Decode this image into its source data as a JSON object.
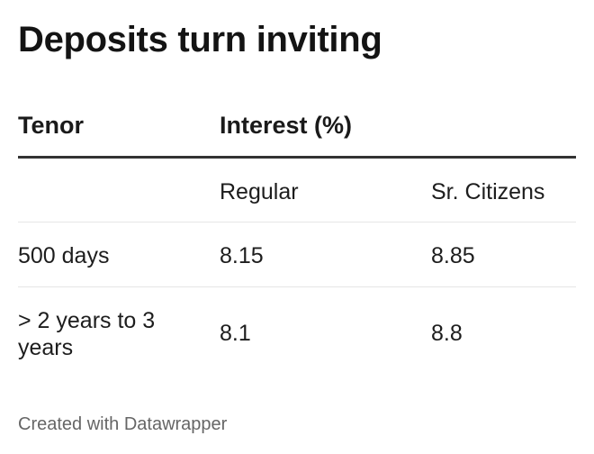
{
  "title": "Deposits turn inviting",
  "chart_data": {
    "type": "table",
    "title": "Deposits turn inviting",
    "columns": [
      "Tenor",
      "Interest (%)"
    ],
    "subcolumns": [
      "Regular",
      "Sr. Citizens"
    ],
    "rows": [
      {
        "tenor": "500 days",
        "regular": "8.15",
        "senior": "8.85"
      },
      {
        "tenor": "> 2 years to 3 years",
        "regular": "8.1",
        "senior": "8.8"
      }
    ]
  },
  "footer": "Created with Datawrapper"
}
